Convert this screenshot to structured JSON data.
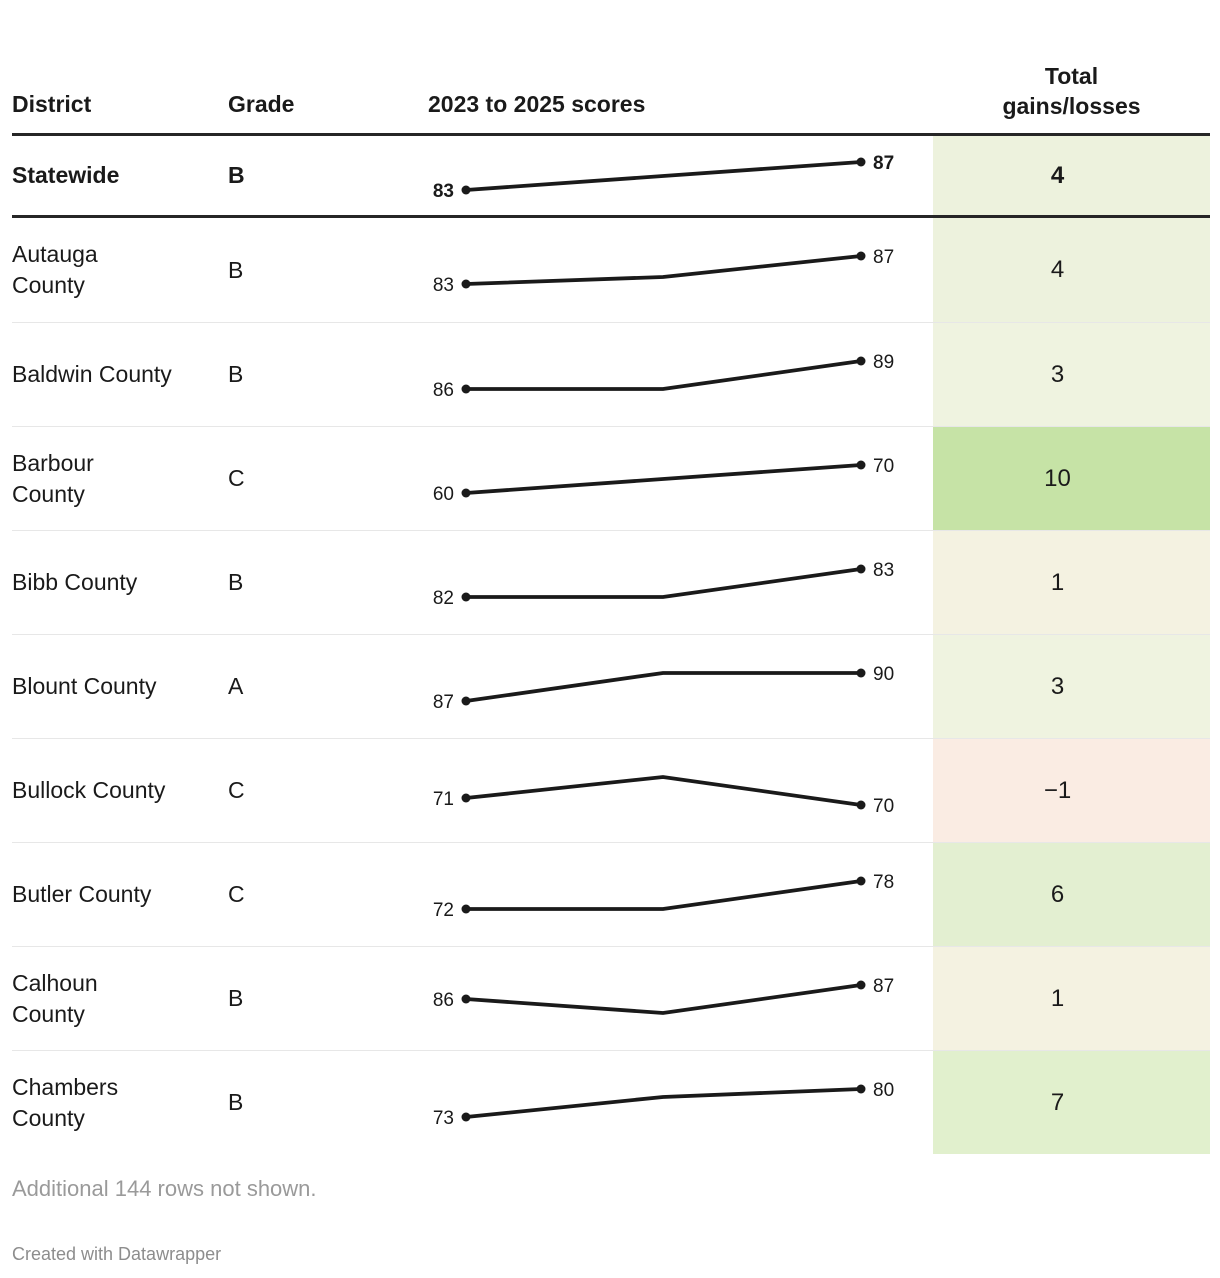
{
  "header": {
    "district": "District",
    "grade": "Grade",
    "scores": "2023 to 2025 scores",
    "gains_line1": "Total",
    "gains_line2": "gains/losses"
  },
  "rows": [
    {
      "district": "Statewide",
      "grade": "B",
      "scores": [
        83,
        85,
        87
      ],
      "gain_label": "4",
      "gain_bg": "#edf2dd",
      "bold": true
    },
    {
      "district": "Autauga County",
      "grade": "B",
      "scores": [
        83,
        84,
        87
      ],
      "gain_label": "4",
      "gain_bg": "#edf2dd",
      "bold": false
    },
    {
      "district": "Baldwin County",
      "grade": "B",
      "scores": [
        86,
        86,
        89
      ],
      "gain_label": "3",
      "gain_bg": "#eff3e0",
      "bold": false
    },
    {
      "district": "Barbour County",
      "grade": "C",
      "scores": [
        60,
        65,
        70
      ],
      "gain_label": "10",
      "gain_bg": "#c6e3a6",
      "bold": false
    },
    {
      "district": "Bibb County",
      "grade": "B",
      "scores": [
        82,
        82,
        83
      ],
      "gain_label": "1",
      "gain_bg": "#f4f2e1",
      "bold": false
    },
    {
      "district": "Blount County",
      "grade": "A",
      "scores": [
        87,
        90,
        90
      ],
      "gain_label": "3",
      "gain_bg": "#eff3e0",
      "bold": false
    },
    {
      "district": "Bullock County",
      "grade": "C",
      "scores": [
        71,
        74,
        70
      ],
      "gain_label": "−1",
      "gain_bg": "#faece3",
      "bold": false
    },
    {
      "district": "Butler County",
      "grade": "C",
      "scores": [
        72,
        72,
        78
      ],
      "gain_label": "6",
      "gain_bg": "#e3efd1",
      "bold": false
    },
    {
      "district": "Calhoun County",
      "grade": "B",
      "scores": [
        86,
        85,
        87
      ],
      "gain_label": "1",
      "gain_bg": "#f4f2e1",
      "bold": false
    },
    {
      "district": "Chambers County",
      "grade": "B",
      "scores": [
        73,
        78,
        80
      ],
      "gain_label": "7",
      "gain_bg": "#e1f0cd",
      "bold": false
    }
  ],
  "footer": {
    "note": "Additional 144 rows not shown.",
    "credit": "Created with Datawrapper"
  },
  "colors": {
    "text": "#1a1a1a",
    "line": "#1a1a1a",
    "border_dark": "#262626",
    "separator": "#e7e7e7",
    "note_text": "#9a9a9a",
    "credit_text": "#8d8d8d",
    "gain_positive_high": "#c6e3a6",
    "gain_positive_low": "#f4f2e1",
    "gain_negative": "#faece3"
  },
  "chart_data": {
    "type": "table",
    "title": "",
    "columns": [
      "District",
      "Grade",
      "2023 to 2025 scores",
      "Total gains/losses"
    ],
    "score_years": [
      2023,
      2024,
      2025
    ],
    "sparkline": {
      "type": "line",
      "labeled_points": "first and last",
      "scaling": "per-row min to max"
    },
    "rows": [
      {
        "district": "Statewide",
        "grade": "B",
        "scores": [
          83,
          85,
          87
        ],
        "total": 4
      },
      {
        "district": "Autauga County",
        "grade": "B",
        "scores": [
          83,
          84,
          87
        ],
        "total": 4
      },
      {
        "district": "Baldwin County",
        "grade": "B",
        "scores": [
          86,
          86,
          89
        ],
        "total": 3
      },
      {
        "district": "Barbour County",
        "grade": "C",
        "scores": [
          60,
          65,
          70
        ],
        "total": 10
      },
      {
        "district": "Bibb County",
        "grade": "B",
        "scores": [
          82,
          82,
          83
        ],
        "total": 1
      },
      {
        "district": "Blount County",
        "grade": "A",
        "scores": [
          87,
          90,
          90
        ],
        "total": 3
      },
      {
        "district": "Bullock County",
        "grade": "C",
        "scores": [
          71,
          74,
          70
        ],
        "total": -1
      },
      {
        "district": "Butler County",
        "grade": "C",
        "scores": [
          72,
          72,
          78
        ],
        "total": 6
      },
      {
        "district": "Calhoun County",
        "grade": "B",
        "scores": [
          86,
          85,
          87
        ],
        "total": 1
      },
      {
        "district": "Chambers County",
        "grade": "B",
        "scores": [
          73,
          78,
          80
        ],
        "total": 7
      }
    ],
    "note": "Additional 144 rows not shown."
  }
}
